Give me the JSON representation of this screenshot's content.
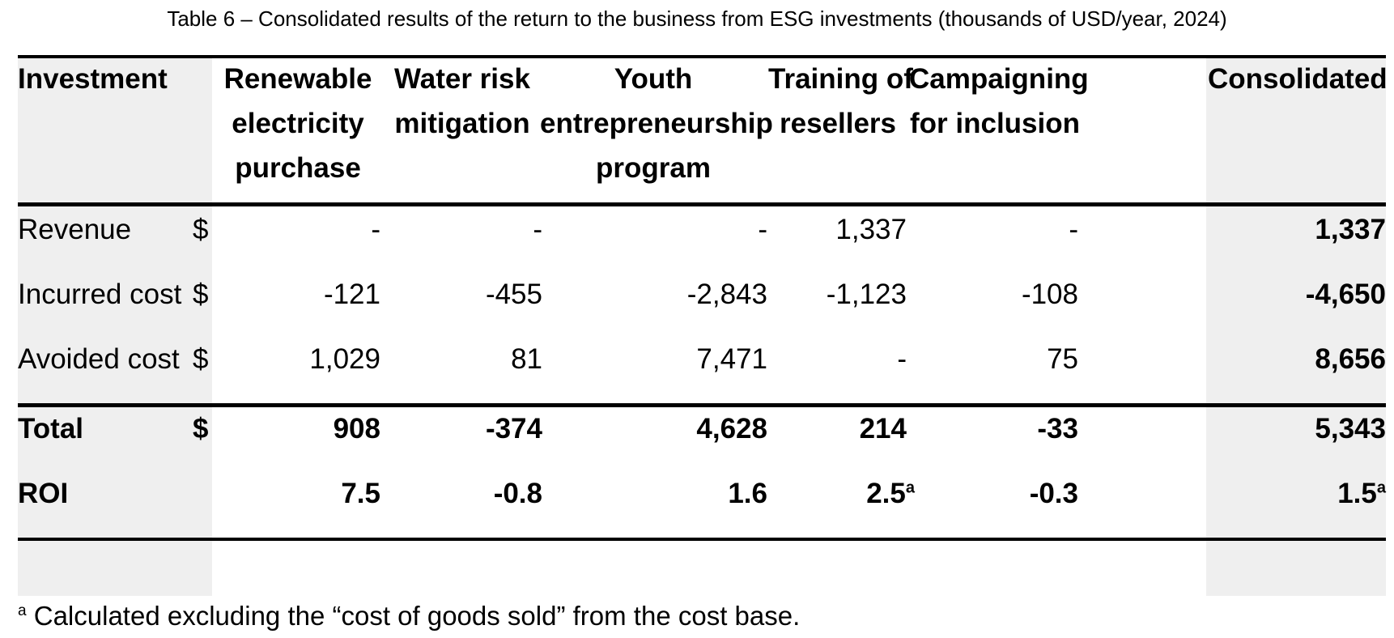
{
  "caption": "Table 6 – Consolidated results of the return to the business from ESG investments (thousands of USD/year, 2024)",
  "table": {
    "header": {
      "label": "Investment",
      "columns": [
        {
          "lines": [
            "Renewable",
            "electricity",
            "purchase"
          ]
        },
        {
          "lines": [
            "Water risk",
            "mitigation"
          ]
        },
        {
          "lines": [
            "Youth",
            "entrepreneurship",
            "program"
          ]
        },
        {
          "lines": [
            "Training of",
            "resellers"
          ]
        },
        {
          "lines": [
            "Campaigning",
            "for inclusion"
          ]
        },
        {
          "lines": [
            "Consolidated"
          ]
        }
      ]
    },
    "rows": [
      {
        "label": "Revenue",
        "currency": "$",
        "values": [
          "-",
          "-",
          "-",
          "1,337",
          "-",
          "1,337"
        ]
      },
      {
        "label": "Incurred cost",
        "currency": "$",
        "values": [
          "-121",
          "-455",
          "-2,843",
          "-1,123",
          "-108",
          "-4,650"
        ]
      },
      {
        "label": "Avoided cost",
        "currency": "$",
        "values": [
          "1,029",
          "81",
          "7,471",
          "-",
          "75",
          "8,656"
        ]
      },
      {
        "label": "Total",
        "currency": "$",
        "values": [
          "908",
          "-374",
          "4,628",
          "214",
          "-33",
          "5,343"
        ]
      },
      {
        "label": "ROI",
        "currency": "",
        "values": [
          "7.5",
          "-0.8",
          "1.6",
          "2.5",
          "-0.3",
          "1.5"
        ]
      }
    ],
    "roi_footnote_marks": [
      "",
      "",
      "",
      "a",
      "",
      "a"
    ]
  },
  "footnote": {
    "mark": "a",
    "text": " Calculated excluding the “cost of goods sold” from the cost base."
  }
}
